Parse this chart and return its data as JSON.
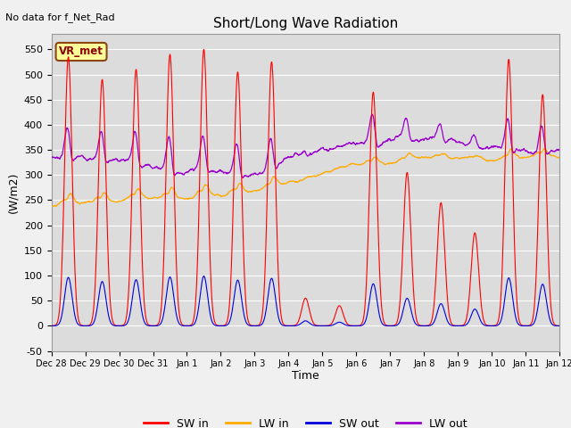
{
  "title": "Short/Long Wave Radiation",
  "top_left_text": "No data for f_Net_Rad",
  "ylabel": "(W/m2)",
  "xlabel": "Time",
  "ylim": [
    -50,
    580
  ],
  "yticks": [
    -50,
    0,
    50,
    100,
    150,
    200,
    250,
    300,
    350,
    400,
    450,
    500,
    550
  ],
  "legend_labels": [
    "SW in",
    "LW in",
    "SW out",
    "LW out"
  ],
  "legend_colors": [
    "#ff0000",
    "#ffaa00",
    "#0000dd",
    "#9900cc"
  ],
  "box_label": "VR_met",
  "bg_color": "#dcdcdc",
  "fig_bg_color": "#f0f0f0",
  "n_points": 2160,
  "tick_labels": [
    "Dec 28",
    "Dec 29",
    "Dec 30",
    "Dec 31",
    "Jan 1",
    "Jan 2",
    "Jan 3",
    "Jan 4",
    "Jan 5",
    "Jan 6",
    "Jan 7",
    "Jan 8",
    "Jan 9",
    "Jan 10",
    "Jan 11",
    "Jan 12"
  ]
}
